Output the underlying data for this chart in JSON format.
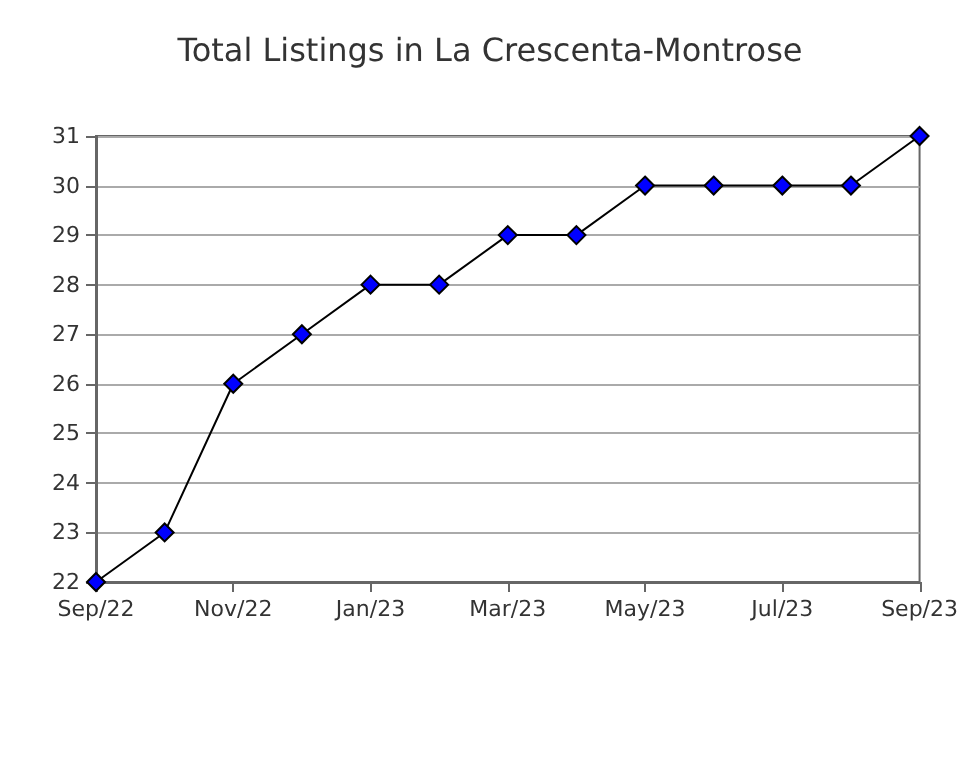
{
  "chart_data": {
    "type": "line",
    "title": "Total Listings in La Crescenta-Montrose",
    "categories": [
      "Sep/22",
      null,
      "Nov/22",
      null,
      "Jan/23",
      null,
      "Mar/23",
      null,
      "May/23",
      null,
      "Jul/23",
      null,
      "Sep/23"
    ],
    "series": [
      {
        "color": "#0000ff",
        "values": [
          22,
          23,
          26,
          27,
          28,
          28,
          29,
          29,
          30,
          30,
          30,
          30,
          31
        ]
      }
    ],
    "ylim": [
      22,
      31
    ],
    "yticks": [
      22,
      23,
      24,
      25,
      26,
      27,
      28,
      29,
      30,
      31
    ],
    "grid": "y",
    "marker": "diamond",
    "line_style": "solid"
  }
}
